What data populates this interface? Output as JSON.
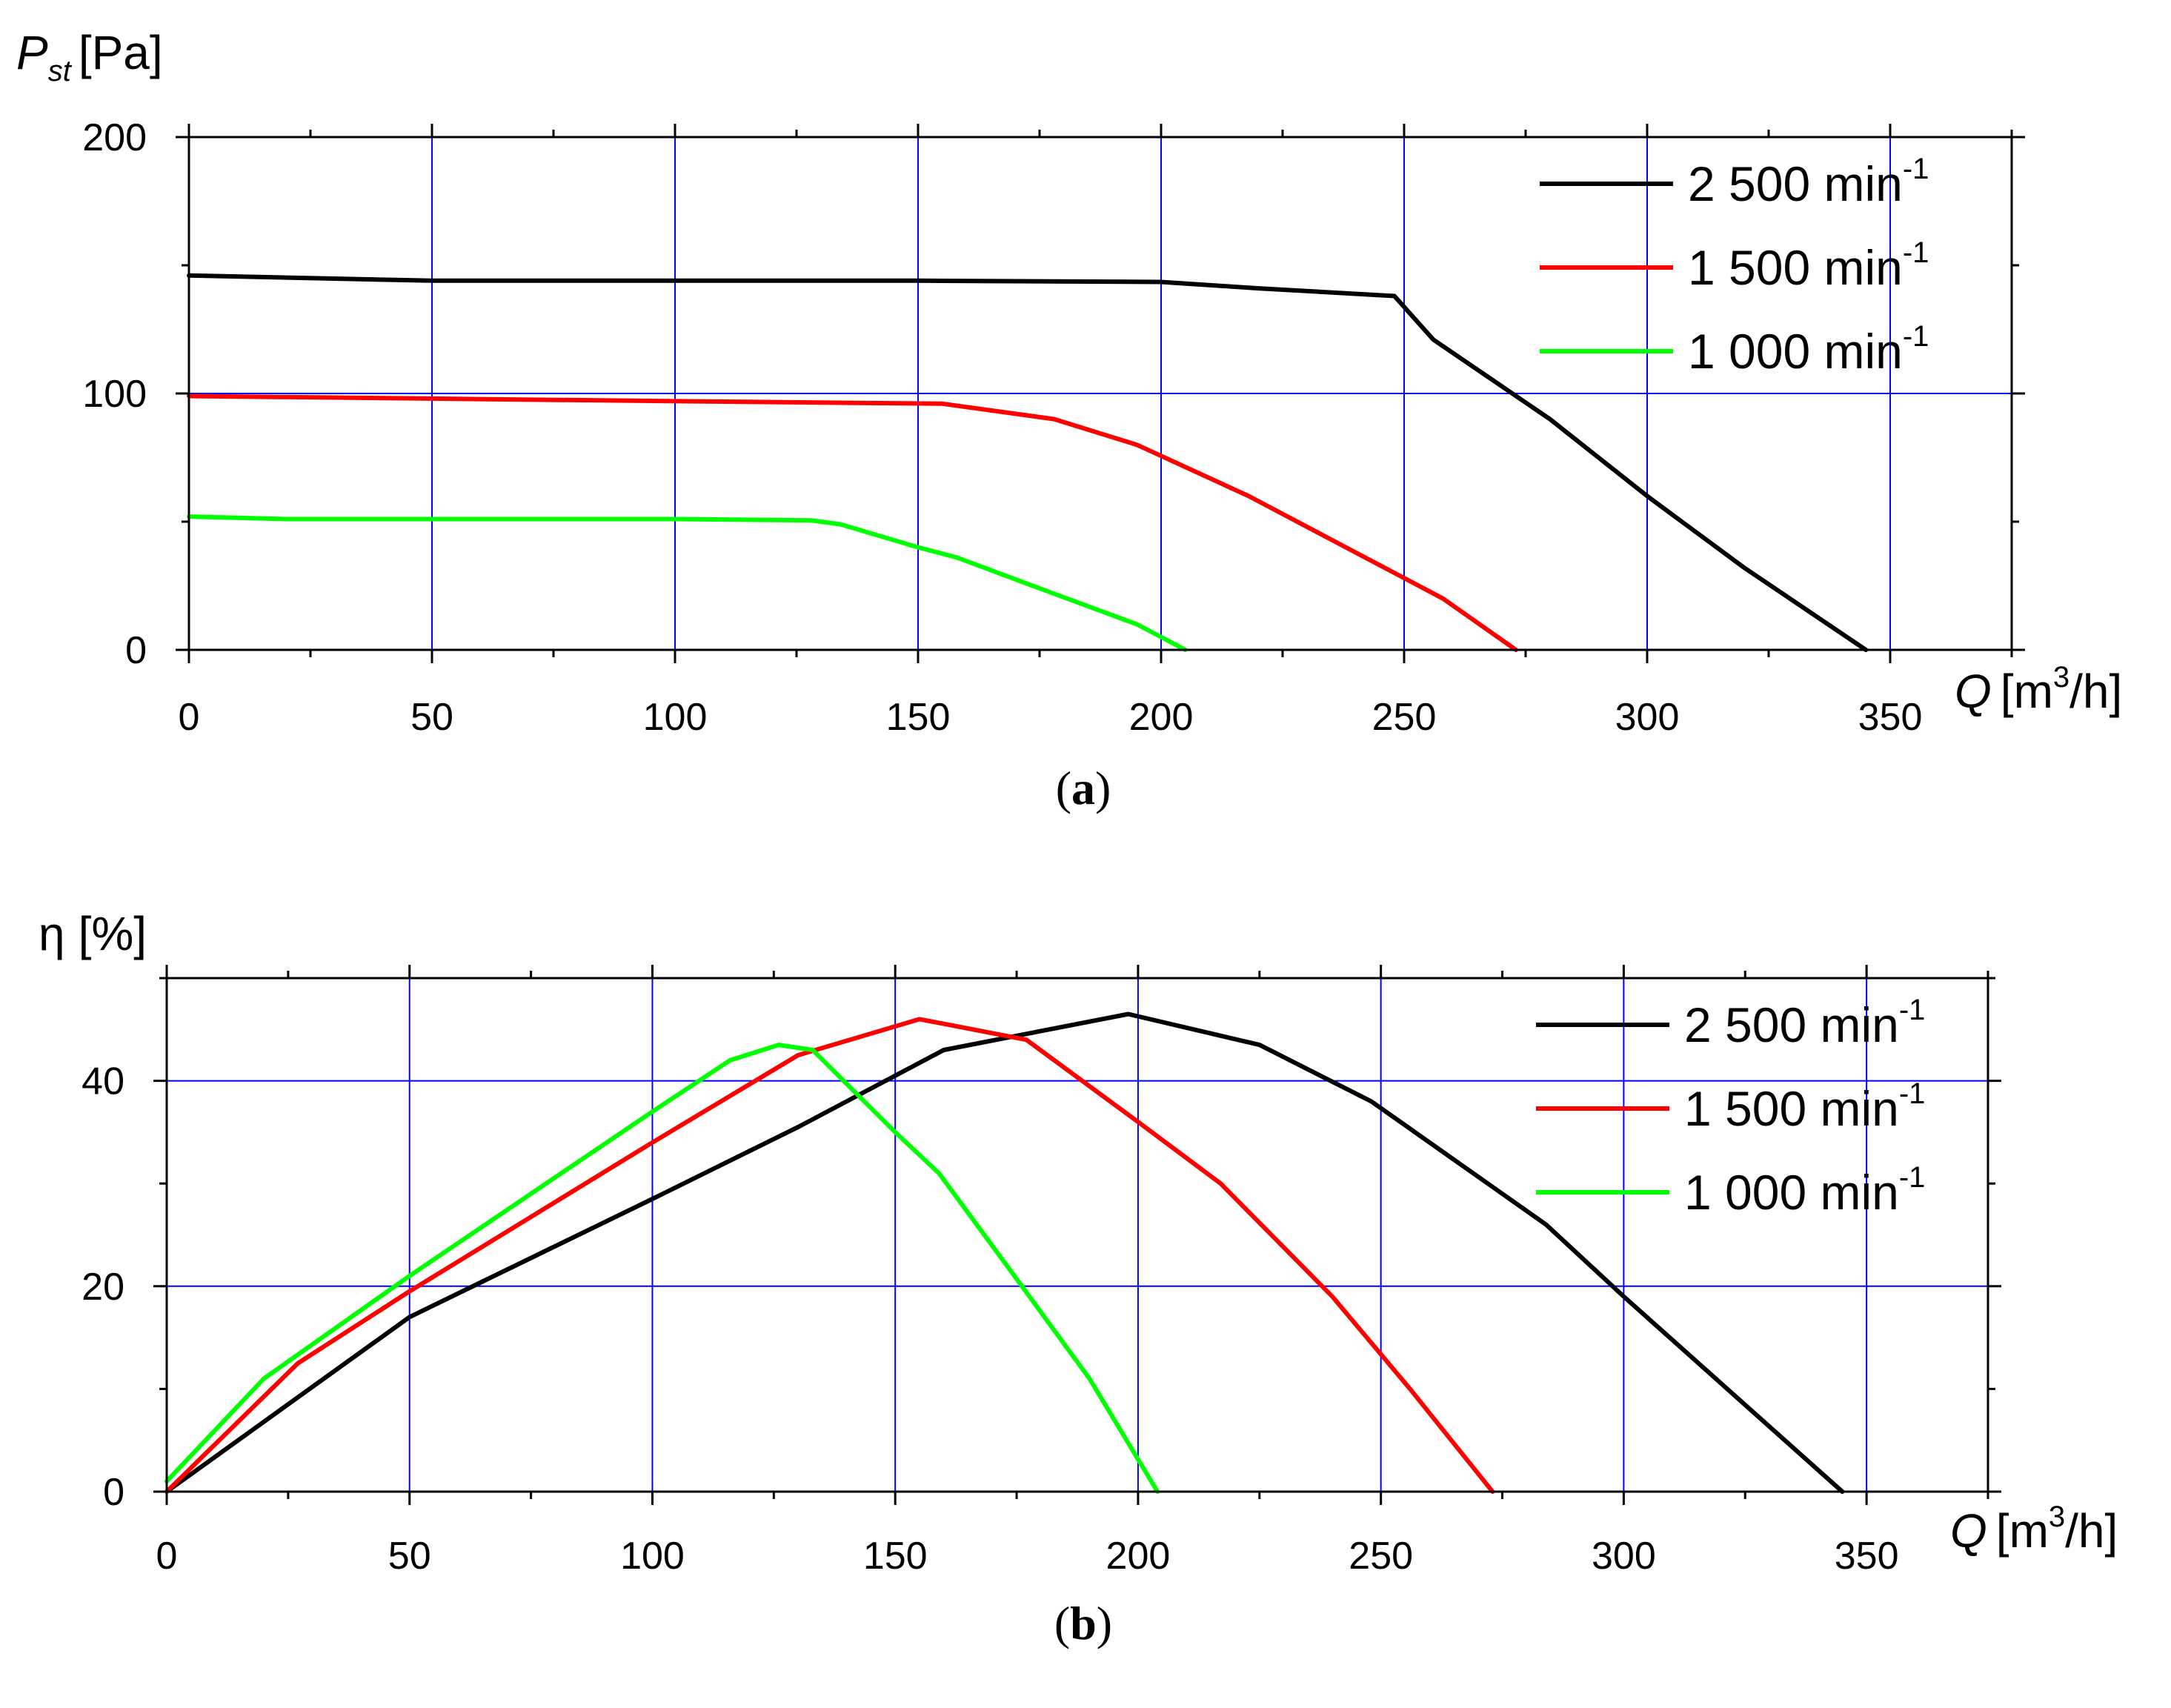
{
  "chart_data": [
    {
      "type": "line",
      "panel_label": "a",
      "ylabel_symbol": "P",
      "ylabel_subscript": "st",
      "ylabel_unit": "[Pa]",
      "xlabel_symbol": "Q",
      "xlabel_unit_pre": "[m",
      "xlabel_unit_sup": "3",
      "xlabel_unit_post": "/h]",
      "xlim": [
        0,
        375
      ],
      "ylim": [
        0,
        200
      ],
      "xticks": [
        0,
        50,
        100,
        150,
        200,
        250,
        300,
        350
      ],
      "yticks": [
        0,
        100,
        200
      ],
      "grid": true,
      "legend_position": "top-right",
      "series": [
        {
          "name": "2 500 min",
          "name_sup": "-1",
          "color": "#000000",
          "points": [
            [
              0,
              146
            ],
            [
              50,
              144
            ],
            [
              100,
              144
            ],
            [
              150,
              144
            ],
            [
              200,
              143.5
            ],
            [
              220,
              141
            ],
            [
              248,
              138
            ],
            [
              256,
              121
            ],
            [
              280,
              90
            ],
            [
              300,
              60
            ],
            [
              320,
              32
            ],
            [
              345,
              0
            ]
          ]
        },
        {
          "name": "1 500 min",
          "name_sup": "-1",
          "color": "#ff0000",
          "points": [
            [
              0,
              99
            ],
            [
              50,
              98
            ],
            [
              100,
              97
            ],
            [
              155,
              96
            ],
            [
              178,
              90
            ],
            [
              195,
              80
            ],
            [
              218,
              60
            ],
            [
              238,
              40
            ],
            [
              258,
              20
            ],
            [
              273,
              0
            ]
          ]
        },
        {
          "name": "1 000 min",
          "name_sup": "-1",
          "color": "#00ff00",
          "points": [
            [
              0,
              52
            ],
            [
              20,
              51
            ],
            [
              50,
              51
            ],
            [
              100,
              51
            ],
            [
              128,
              50.5
            ],
            [
              134,
              49
            ],
            [
              150,
              40
            ],
            [
              158,
              36
            ],
            [
              175,
              24
            ],
            [
              195,
              10
            ],
            [
              205,
              0
            ]
          ]
        }
      ]
    },
    {
      "type": "line",
      "panel_label": "b",
      "ylabel_symbol": "η",
      "ylabel_unit": "[%]",
      "xlabel_symbol": "Q",
      "xlabel_unit_pre": "[m",
      "xlabel_unit_sup": "3",
      "xlabel_unit_post": "/h]",
      "xlim": [
        0,
        375
      ],
      "ylim": [
        0,
        50
      ],
      "xticks": [
        0,
        50,
        100,
        150,
        200,
        250,
        300,
        350
      ],
      "yticks": [
        0,
        20,
        40
      ],
      "grid": true,
      "legend_position": "top-right",
      "series": [
        {
          "name": "2 500 min",
          "name_sup": "-1",
          "color": "#000000",
          "points": [
            [
              0,
              0
            ],
            [
              50,
              17
            ],
            [
              100,
              28.5
            ],
            [
              130,
              35.5
            ],
            [
              160,
              43
            ],
            [
              198,
              46.5
            ],
            [
              225,
              43.5
            ],
            [
              248,
              38
            ],
            [
              284,
              26
            ],
            [
              300,
              19
            ],
            [
              345,
              0
            ]
          ]
        },
        {
          "name": "1 500 min",
          "name_sup": "-1",
          "color": "#ff0000",
          "points": [
            [
              0,
              0
            ],
            [
              27,
              12.5
            ],
            [
              50,
              19.5
            ],
            [
              100,
              34
            ],
            [
              130,
              42.5
            ],
            [
              155,
              46
            ],
            [
              177,
              44
            ],
            [
              200,
              36
            ],
            [
              217,
              30
            ],
            [
              240,
              19
            ],
            [
              256,
              10
            ],
            [
              273,
              0
            ]
          ]
        },
        {
          "name": "1 000 min",
          "name_sup": "-1",
          "color": "#00ff00",
          "points": [
            [
              0,
              1
            ],
            [
              20,
              11
            ],
            [
              50,
              21
            ],
            [
              100,
              37
            ],
            [
              116,
              42
            ],
            [
              126,
              43.5
            ],
            [
              133,
              43
            ],
            [
              150,
              35
            ],
            [
              159,
              31
            ],
            [
              173,
              22
            ],
            [
              190,
              11
            ],
            [
              204,
              0
            ]
          ]
        }
      ]
    }
  ]
}
